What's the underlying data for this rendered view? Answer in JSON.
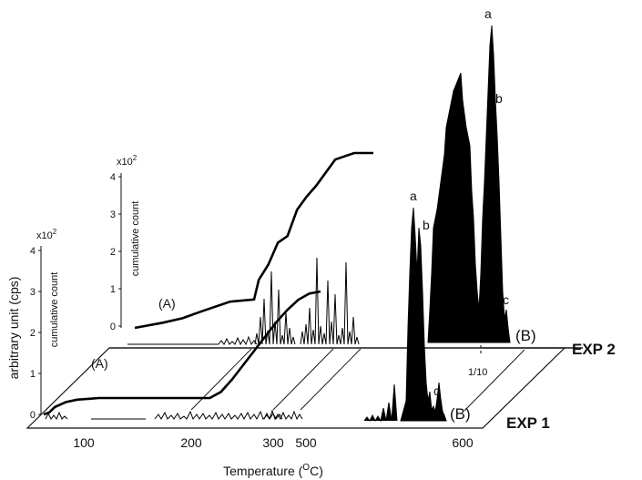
{
  "chart_data": {
    "type": "line",
    "ylabel": "arbitrary unit (cps)",
    "xlabel_prefix": "Temperature (",
    "xlabel_sup": "O",
    "xlabel_suffix": "C)",
    "cumulative_label": "cumulative count",
    "multiplier": "x10",
    "multiplier_exp": "2",
    "panels": [
      {
        "name": "EXP 1",
        "x_ticks": [
          "100",
          "200",
          "300",
          "500",
          "600"
        ],
        "cumulative_ylim": [
          0,
          4
        ],
        "cumulative_yticks": [
          "0",
          "1",
          "2",
          "3",
          "4"
        ],
        "cumulative_series_label": "(A)",
        "cumulative": {
          "x": [
            50,
            55,
            60,
            70,
            80,
            90,
            100,
            150,
            200,
            210,
            220,
            230,
            240,
            250,
            260,
            270,
            280,
            290,
            300
          ],
          "y": [
            0.0,
            0.05,
            0.18,
            0.3,
            0.36,
            0.38,
            0.4,
            0.4,
            0.4,
            0.55,
            0.85,
            1.2,
            1.55,
            1.9,
            2.25,
            2.55,
            2.8,
            2.95,
            3.0
          ]
        },
        "spectrum_label": "(B)",
        "peak_labels": [
          "a",
          "b",
          "c"
        ]
      },
      {
        "name": "EXP 2",
        "cumulative_ylim": [
          0,
          4
        ],
        "cumulative_yticks": [
          "0",
          "1",
          "2",
          "3",
          "4"
        ],
        "cumulative_series_label": "(A)",
        "cumulative": {
          "x": [
            50,
            80,
            100,
            120,
            150,
            175,
            180,
            190,
            200,
            210,
            220,
            230,
            240,
            260,
            280,
            300
          ],
          "y": [
            0.0,
            0.12,
            0.22,
            0.38,
            0.6,
            0.65,
            1.1,
            1.45,
            1.95,
            2.1,
            2.7,
            3.0,
            3.25,
            3.85,
            4.0,
            4.0
          ]
        },
        "spectrum_label": "(B)",
        "peak_labels": [
          "a",
          "b",
          "c"
        ],
        "scale_note": "1/10"
      }
    ]
  }
}
